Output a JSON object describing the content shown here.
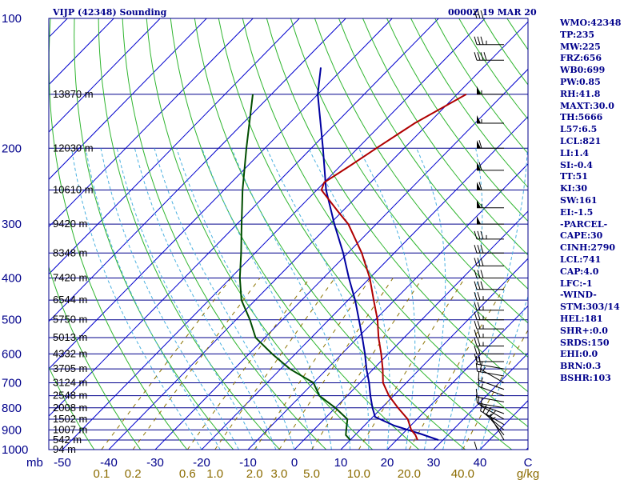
{
  "header": {
    "station": "VIJP (42348) Sounding",
    "time": "0000Z 19 MAR 20"
  },
  "indices": [
    "WMO:42348",
    "TP:235",
    "MW:225",
    "FRZ:656",
    "WB0:699",
    "PW:0.85",
    "RH:41.8",
    "MAXT:30.0",
    "TH:5666",
    "L57:6.5",
    "LCL:821",
    "LI:1.4",
    "SI:-0.4",
    "TT:51",
    "KI:30",
    "SW:161",
    "EI:-1.5",
    "-PARCEL-",
    "CAPE:30",
    "CINH:2790",
    "LCL:741",
    "CAP:4.0",
    "LFC:-1",
    "-WIND-",
    "STM:303/14",
    "HEL:181",
    "SHR+:0.0",
    "SRDS:150",
    "EHI:0.0",
    "BRN:0.3",
    "BSHR:103"
  ],
  "colors": {
    "frame": "#00008b",
    "isobar": "#00008b",
    "isotherm": "#0000cd",
    "dry_adiabat": "#2fb52f",
    "moist_adiabat": "#4ab0e0",
    "mixing_ratio": "#8b7300",
    "temperature": "#b00000",
    "dewpoint": "#004d00",
    "parcel": "#0000a0",
    "wind_barb": "#000000"
  },
  "chart_data": {
    "type": "skew-t log-p sounding",
    "pressure_levels_mb": [
      100,
      200,
      300,
      400,
      500,
      600,
      700,
      800,
      900,
      1000
    ],
    "pressure_unit": "mb",
    "temperature_ticks_C": [
      -50,
      -40,
      -30,
      -20,
      -10,
      0,
      10,
      20,
      30,
      40
    ],
    "temperature_unit": "C",
    "mixing_ratio_ticks": [
      "0.1",
      "0.2",
      "0.6",
      "1.0",
      "2.0",
      "3.0",
      "5.0",
      "10.0",
      "20.0",
      "40.0"
    ],
    "mixing_ratio_unit": "g/kg",
    "height_labels": [
      {
        "p": 150,
        "label": "13870 m"
      },
      {
        "p": 200,
        "label": "12030 m"
      },
      {
        "p": 250,
        "label": "10610 m"
      },
      {
        "p": 300,
        "label": "9420 m"
      },
      {
        "p": 350,
        "label": "8348 m"
      },
      {
        "p": 400,
        "label": "7420 m"
      },
      {
        "p": 450,
        "label": "6544 m"
      },
      {
        "p": 500,
        "label": "5750 m"
      },
      {
        "p": 550,
        "label": "5013 m"
      },
      {
        "p": 600,
        "label": "4332 m"
      },
      {
        "p": 650,
        "label": "3705 m"
      },
      {
        "p": 700,
        "label": "3124 m"
      },
      {
        "p": 750,
        "label": "2548 m"
      },
      {
        "p": 800,
        "label": "2008 m"
      },
      {
        "p": 850,
        "label": "1502 m"
      },
      {
        "p": 900,
        "label": "1007 m"
      },
      {
        "p": 950,
        "label": "542 m"
      },
      {
        "p": 1000,
        "label": "94 m"
      }
    ],
    "temperature_profile": [
      {
        "p": 950,
        "T": 24.5
      },
      {
        "p": 925,
        "T": 23.0
      },
      {
        "p": 900,
        "T": 21.0
      },
      {
        "p": 850,
        "T": 18.0
      },
      {
        "p": 800,
        "T": 13.5
      },
      {
        "p": 750,
        "T": 9.0
      },
      {
        "p": 700,
        "T": 5.0
      },
      {
        "p": 650,
        "T": 2.0
      },
      {
        "p": 600,
        "T": -1.5
      },
      {
        "p": 550,
        "T": -5.5
      },
      {
        "p": 500,
        "T": -9.5
      },
      {
        "p": 450,
        "T": -14.5
      },
      {
        "p": 400,
        "T": -20.0
      },
      {
        "p": 350,
        "T": -27.0
      },
      {
        "p": 300,
        "T": -36.0
      },
      {
        "p": 280,
        "T": -41.0
      },
      {
        "p": 250,
        "T": -49.0
      },
      {
        "p": 240,
        "T": -50.0
      },
      {
        "p": 220,
        "T": -48.0
      },
      {
        "p": 200,
        "T": -46.0
      },
      {
        "p": 175,
        "T": -43.0
      },
      {
        "p": 150,
        "T": -38.0
      }
    ],
    "dewpoint_profile": [
      {
        "p": 950,
        "T": 10.0
      },
      {
        "p": 925,
        "T": 8.0
      },
      {
        "p": 900,
        "T": 7.0
      },
      {
        "p": 850,
        "T": 5.0
      },
      {
        "p": 800,
        "T": 0.0
      },
      {
        "p": 750,
        "T": -6.0
      },
      {
        "p": 700,
        "T": -10.0
      },
      {
        "p": 650,
        "T": -18.0
      },
      {
        "p": 600,
        "T": -25.0
      },
      {
        "p": 550,
        "T": -32.0
      },
      {
        "p": 500,
        "T": -37.0
      },
      {
        "p": 450,
        "T": -43.0
      },
      {
        "p": 400,
        "T": -48.0
      },
      {
        "p": 350,
        "T": -53.0
      },
      {
        "p": 300,
        "T": -59.0
      },
      {
        "p": 250,
        "T": -66.0
      },
      {
        "p": 200,
        "T": -74.0
      },
      {
        "p": 150,
        "T": -84.0
      }
    ],
    "parcel_profile": [
      {
        "p": 950,
        "T": 29.0
      },
      {
        "p": 920,
        "T": 24.0
      },
      {
        "p": 880,
        "T": 16.5
      },
      {
        "p": 840,
        "T": 10.5
      },
      {
        "p": 800,
        "T": 8.0
      },
      {
        "p": 750,
        "T": 5.0
      },
      {
        "p": 700,
        "T": 2.0
      },
      {
        "p": 650,
        "T": -1.5
      },
      {
        "p": 600,
        "T": -5.0
      },
      {
        "p": 550,
        "T": -9.0
      },
      {
        "p": 500,
        "T": -13.5
      },
      {
        "p": 450,
        "T": -18.5
      },
      {
        "p": 400,
        "T": -24.5
      },
      {
        "p": 350,
        "T": -31.0
      },
      {
        "p": 300,
        "T": -39.0
      },
      {
        "p": 250,
        "T": -48.0
      },
      {
        "p": 200,
        "T": -57.5
      },
      {
        "p": 150,
        "T": -70.0
      },
      {
        "p": 130,
        "T": -75.0
      }
    ],
    "wind_barbs": [
      {
        "p": 1000,
        "dir": 270,
        "spd_kt": 10
      },
      {
        "p": 950,
        "dir": 330,
        "spd_kt": 15
      },
      {
        "p": 925,
        "dir": 320,
        "spd_kt": 15
      },
      {
        "p": 900,
        "dir": 310,
        "spd_kt": 10
      },
      {
        "p": 875,
        "dir": 300,
        "spd_kt": 10
      },
      {
        "p": 850,
        "dir": 300,
        "spd_kt": 10
      },
      {
        "p": 825,
        "dir": 290,
        "spd_kt": 10
      },
      {
        "p": 800,
        "dir": 280,
        "spd_kt": 10
      },
      {
        "p": 775,
        "dir": 280,
        "spd_kt": 10
      },
      {
        "p": 750,
        "dir": 290,
        "spd_kt": 15
      },
      {
        "p": 725,
        "dir": 290,
        "spd_kt": 15
      },
      {
        "p": 700,
        "dir": 300,
        "spd_kt": 15
      },
      {
        "p": 675,
        "dir": 280,
        "spd_kt": 15
      },
      {
        "p": 650,
        "dir": 280,
        "spd_kt": 20
      },
      {
        "p": 625,
        "dir": 270,
        "spd_kt": 20
      },
      {
        "p": 600,
        "dir": 270,
        "spd_kt": 20
      },
      {
        "p": 575,
        "dir": 270,
        "spd_kt": 25
      },
      {
        "p": 550,
        "dir": 270,
        "spd_kt": 25
      },
      {
        "p": 525,
        "dir": 270,
        "spd_kt": 25
      },
      {
        "p": 500,
        "dir": 270,
        "spd_kt": 25
      },
      {
        "p": 475,
        "dir": 270,
        "spd_kt": 25
      },
      {
        "p": 450,
        "dir": 270,
        "spd_kt": 25
      },
      {
        "p": 425,
        "dir": 270,
        "spd_kt": 30
      },
      {
        "p": 400,
        "dir": 270,
        "spd_kt": 30
      },
      {
        "p": 375,
        "dir": 270,
        "spd_kt": 30
      },
      {
        "p": 350,
        "dir": 270,
        "spd_kt": 30
      },
      {
        "p": 325,
        "dir": 270,
        "spd_kt": 35
      },
      {
        "p": 300,
        "dir": 270,
        "spd_kt": 50
      },
      {
        "p": 275,
        "dir": 270,
        "spd_kt": 55
      },
      {
        "p": 250,
        "dir": 270,
        "spd_kt": 60
      },
      {
        "p": 225,
        "dir": 270,
        "spd_kt": 60
      },
      {
        "p": 200,
        "dir": 270,
        "spd_kt": 60
      },
      {
        "p": 175,
        "dir": 270,
        "spd_kt": 55
      },
      {
        "p": 150,
        "dir": 270,
        "spd_kt": 55
      },
      {
        "p": 125,
        "dir": 270,
        "spd_kt": 40
      },
      {
        "p": 115,
        "dir": 270,
        "spd_kt": 35
      },
      {
        "p": 100,
        "dir": 270,
        "spd_kt": 30
      }
    ]
  }
}
